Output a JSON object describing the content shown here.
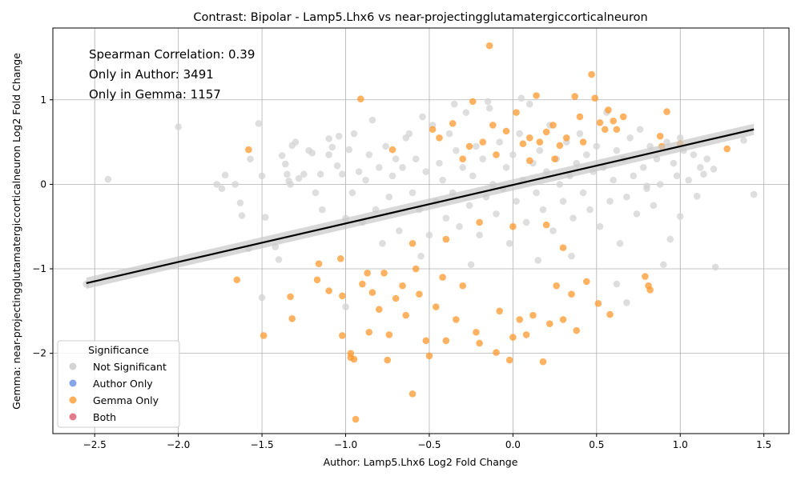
{
  "chart_data": {
    "type": "scatter",
    "title": "Contrast: Bipolar - Lamp5.Lhx6 vs near-projectingglutamatergiccorticalneuron",
    "xlabel": "Author: Lamp5.Lhx6 Log2 Fold Change",
    "ylabel": "Gemma: near-projectingglutamatergiccorticalneuron Log2 Fold Change",
    "xlim": [
      -2.75,
      1.65
    ],
    "ylim": [
      -2.95,
      1.85
    ],
    "x_ticks": [
      -2.5,
      -2.0,
      -1.5,
      -1.0,
      -0.5,
      0.0,
      0.5,
      1.0,
      1.5
    ],
    "x_tick_labels": [
      "−2.5",
      "−2.0",
      "−1.5",
      "−1.0",
      "−0.5",
      "0.0",
      "0.5",
      "1.0",
      "1.5"
    ],
    "y_ticks": [
      -2,
      -1,
      0,
      1
    ],
    "y_tick_labels": [
      "−2",
      "−1",
      "0",
      "1"
    ],
    "grid": true,
    "annotations": [
      "Spearman Correlation: 0.39",
      "Only in Author: 3491",
      "Only in Gemma: 1157"
    ],
    "regression_line": {
      "x": [
        -2.55,
        1.44
      ],
      "y": [
        -1.17,
        0.65
      ]
    },
    "legend": {
      "title": "Significance",
      "position": "lower-left",
      "entries": [
        {
          "label": "Not Significant",
          "color": "#d3d3d3"
        },
        {
          "label": "Author Only",
          "color": "#6a8ee6"
        },
        {
          "label": "Gemma Only",
          "color": "#ff9a2e"
        },
        {
          "label": "Both",
          "color": "#dd5a6e"
        }
      ]
    },
    "series": [
      {
        "name": "Not Significant",
        "color": "#d3d3d3",
        "points": [
          [
            -2.55,
            -1.18
          ],
          [
            -2.42,
            0.06
          ],
          [
            -2.0,
            0.68
          ],
          [
            -1.77,
            0.0
          ],
          [
            -1.74,
            -0.05
          ],
          [
            -1.72,
            0.11
          ],
          [
            -1.66,
            0.0
          ],
          [
            -1.63,
            -0.22
          ],
          [
            -1.62,
            -0.37
          ],
          [
            -1.58,
            -0.76
          ],
          [
            -1.57,
            0.3
          ],
          [
            -1.52,
            0.72
          ],
          [
            -1.5,
            0.1
          ],
          [
            -1.48,
            -0.39
          ],
          [
            -1.42,
            -0.74
          ],
          [
            -1.4,
            -0.89
          ],
          [
            -1.38,
            0.34
          ],
          [
            -1.36,
            0.24
          ],
          [
            -1.35,
            0.12
          ],
          [
            -1.34,
            0.04
          ],
          [
            -1.33,
            0.0
          ],
          [
            -1.32,
            0.46
          ],
          [
            -1.3,
            0.5
          ],
          [
            -1.28,
            0.07
          ],
          [
            -1.25,
            0.12
          ],
          [
            -1.22,
            0.4
          ],
          [
            -1.2,
            0.37
          ],
          [
            -1.18,
            -0.1
          ],
          [
            -1.15,
            0.12
          ],
          [
            -1.14,
            -0.3
          ],
          [
            -1.1,
            0.54
          ],
          [
            -1.08,
            0.44
          ],
          [
            -1.05,
            0.22
          ],
          [
            -1.04,
            0.57
          ],
          [
            -1.02,
            0.12
          ],
          [
            -1.0,
            -0.4
          ],
          [
            -0.98,
            0.41
          ],
          [
            -0.96,
            -0.1
          ],
          [
            -0.95,
            0.6
          ],
          [
            -0.92,
            0.15
          ],
          [
            -0.9,
            -0.45
          ],
          [
            -0.88,
            0.05
          ],
          [
            -0.86,
            0.35
          ],
          [
            -0.84,
            0.76
          ],
          [
            -0.82,
            -0.3
          ],
          [
            -0.8,
            0.2
          ],
          [
            -0.78,
            -0.7
          ],
          [
            -0.76,
            0.45
          ],
          [
            -0.74,
            -0.15
          ],
          [
            -0.72,
            0.1
          ],
          [
            -0.7,
            0.3
          ],
          [
            -0.68,
            -0.55
          ],
          [
            -0.66,
            0.2
          ],
          [
            -0.64,
            0.55
          ],
          [
            -0.62,
            0.6
          ],
          [
            -0.6,
            -0.1
          ],
          [
            -0.58,
            0.3
          ],
          [
            -0.56,
            -0.3
          ],
          [
            -0.54,
            0.8
          ],
          [
            -0.52,
            0.15
          ],
          [
            -0.5,
            -0.6
          ],
          [
            -0.48,
            0.7
          ],
          [
            -0.46,
            -0.2
          ],
          [
            -0.44,
            0.25
          ],
          [
            -0.42,
            0.05
          ],
          [
            -0.4,
            -0.4
          ],
          [
            -0.38,
            0.6
          ],
          [
            -0.36,
            -0.1
          ],
          [
            -0.34,
            0.4
          ],
          [
            -0.32,
            -0.5
          ],
          [
            -0.3,
            0.2
          ],
          [
            -0.28,
            0.85
          ],
          [
            -0.26,
            -0.25
          ],
          [
            -0.24,
            0.1
          ],
          [
            -0.22,
            0.45
          ],
          [
            -0.2,
            -0.6
          ],
          [
            -0.18,
            0.3
          ],
          [
            -0.16,
            -0.15
          ],
          [
            -0.14,
            0.9
          ],
          [
            -0.12,
            0.0
          ],
          [
            -0.1,
            -0.35
          ],
          [
            -0.08,
            0.5
          ],
          [
            -0.06,
            -0.05
          ],
          [
            -0.04,
            0.2
          ],
          [
            -0.02,
            -0.7
          ],
          [
            0.0,
            0.35
          ],
          [
            0.02,
            -0.2
          ],
          [
            0.04,
            0.6
          ],
          [
            0.06,
            0.05
          ],
          [
            0.08,
            -0.45
          ],
          [
            0.1,
            0.95
          ],
          [
            0.12,
            0.25
          ],
          [
            0.14,
            -0.1
          ],
          [
            0.16,
            0.4
          ],
          [
            0.18,
            -0.3
          ],
          [
            0.2,
            0.15
          ],
          [
            0.22,
            0.7
          ],
          [
            0.24,
            -0.55
          ],
          [
            0.26,
            0.3
          ],
          [
            0.28,
            0.0
          ],
          [
            0.3,
            -0.2
          ],
          [
            0.32,
            0.5
          ],
          [
            0.34,
            0.1
          ],
          [
            0.36,
            -0.4
          ],
          [
            0.38,
            0.25
          ],
          [
            0.4,
            0.6
          ],
          [
            0.42,
            -0.1
          ],
          [
            0.44,
            0.35
          ],
          [
            0.46,
            -0.3
          ],
          [
            0.48,
            0.15
          ],
          [
            0.5,
            0.45
          ],
          [
            0.52,
            -0.5
          ],
          [
            0.54,
            0.2
          ],
          [
            0.56,
            0.85
          ],
          [
            0.58,
            -0.2
          ],
          [
            0.6,
            0.05
          ],
          [
            0.62,
            0.4
          ],
          [
            0.64,
            -0.7
          ],
          [
            0.66,
            0.3
          ],
          [
            0.68,
            -0.15
          ],
          [
            0.7,
            0.55
          ],
          [
            0.72,
            0.1
          ],
          [
            0.74,
            -0.35
          ],
          [
            0.76,
            0.65
          ],
          [
            0.78,
            0.2
          ],
          [
            0.8,
            -0.05
          ],
          [
            0.82,
            0.45
          ],
          [
            0.84,
            -0.25
          ],
          [
            0.86,
            0.3
          ],
          [
            0.88,
            0.0
          ],
          [
            0.9,
            -0.95
          ],
          [
            0.92,
            0.5
          ],
          [
            0.94,
            -0.65
          ],
          [
            0.96,
            0.25
          ],
          [
            0.98,
            0.1
          ],
          [
            1.0,
            -0.38
          ],
          [
            1.02,
            0.4
          ],
          [
            1.05,
            0.05
          ],
          [
            1.08,
            0.35
          ],
          [
            1.1,
            -0.14
          ],
          [
            1.12,
            0.2
          ],
          [
            1.14,
            0.12
          ],
          [
            1.16,
            0.3
          ],
          [
            1.2,
            0.18
          ],
          [
            1.21,
            -0.98
          ],
          [
            1.38,
            0.52
          ],
          [
            1.44,
            -0.12
          ],
          [
            -0.35,
            0.95
          ],
          [
            -0.15,
            0.98
          ],
          [
            0.05,
            1.02
          ],
          [
            -0.25,
            -0.95
          ],
          [
            0.15,
            -0.9
          ],
          [
            0.35,
            -0.85
          ],
          [
            -0.55,
            -0.85
          ],
          [
            0.62,
            -1.18
          ],
          [
            0.68,
            -1.4
          ],
          [
            -1.0,
            -1.45
          ],
          [
            -1.5,
            -1.34
          ],
          [
            0.8,
            -0.02
          ],
          [
            1.0,
            0.55
          ],
          [
            -1.1,
            0.35
          ]
        ]
      },
      {
        "name": "Gemma Only",
        "color": "#ff9a2e",
        "points": [
          [
            -1.58,
            0.41
          ],
          [
            -1.65,
            -1.13
          ],
          [
            -1.49,
            -1.79
          ],
          [
            -1.32,
            -1.59
          ],
          [
            -1.33,
            -1.33
          ],
          [
            -1.16,
            -0.94
          ],
          [
            -1.17,
            -1.13
          ],
          [
            -1.1,
            -1.26
          ],
          [
            -1.03,
            -0.88
          ],
          [
            -1.02,
            -1.32
          ],
          [
            -1.02,
            -1.79
          ],
          [
            -0.97,
            -2.0
          ],
          [
            -0.97,
            -2.05
          ],
          [
            -0.95,
            -2.07
          ],
          [
            -0.94,
            -2.78
          ],
          [
            -0.91,
            1.01
          ],
          [
            -0.9,
            -1.18
          ],
          [
            -0.87,
            -1.05
          ],
          [
            -0.86,
            -1.75
          ],
          [
            -0.84,
            -1.28
          ],
          [
            -0.8,
            -1.48
          ],
          [
            -0.77,
            -1.05
          ],
          [
            -0.75,
            -2.08
          ],
          [
            -0.74,
            -1.78
          ],
          [
            -0.72,
            0.41
          ],
          [
            -0.7,
            -1.35
          ],
          [
            -0.66,
            -1.2
          ],
          [
            -0.64,
            -1.55
          ],
          [
            -0.6,
            -2.48
          ],
          [
            -0.58,
            -1.0
          ],
          [
            -0.56,
            -1.3
          ],
          [
            -0.52,
            -1.85
          ],
          [
            -0.5,
            -2.03
          ],
          [
            -0.48,
            0.65
          ],
          [
            -0.46,
            -1.45
          ],
          [
            -0.44,
            0.55
          ],
          [
            -0.42,
            -1.1
          ],
          [
            -0.4,
            -1.85
          ],
          [
            -0.36,
            0.72
          ],
          [
            -0.34,
            -1.6
          ],
          [
            -0.3,
            -1.2
          ],
          [
            -0.26,
            0.45
          ],
          [
            -0.24,
            0.98
          ],
          [
            -0.22,
            -1.75
          ],
          [
            -0.2,
            -1.88
          ],
          [
            -0.18,
            0.5
          ],
          [
            -0.14,
            1.64
          ],
          [
            -0.12,
            0.7
          ],
          [
            -0.1,
            -1.99
          ],
          [
            -0.08,
            -1.5
          ],
          [
            -0.04,
            0.63
          ],
          [
            -0.02,
            -2.08
          ],
          [
            0.0,
            -1.81
          ],
          [
            0.02,
            0.85
          ],
          [
            0.04,
            -1.6
          ],
          [
            0.06,
            0.48
          ],
          [
            0.08,
            -1.78
          ],
          [
            0.1,
            0.55
          ],
          [
            0.12,
            -1.55
          ],
          [
            0.14,
            1.05
          ],
          [
            0.16,
            0.5
          ],
          [
            0.18,
            -2.1
          ],
          [
            0.2,
            0.62
          ],
          [
            0.22,
            -1.65
          ],
          [
            0.24,
            0.7
          ],
          [
            0.26,
            -1.2
          ],
          [
            0.28,
            0.46
          ],
          [
            0.3,
            -1.6
          ],
          [
            0.32,
            0.55
          ],
          [
            0.35,
            -1.3
          ],
          [
            0.37,
            1.04
          ],
          [
            0.38,
            -1.73
          ],
          [
            0.4,
            0.8
          ],
          [
            0.42,
            0.5
          ],
          [
            0.44,
            -1.15
          ],
          [
            0.47,
            1.3
          ],
          [
            0.49,
            1.02
          ],
          [
            0.51,
            -1.41
          ],
          [
            0.52,
            0.73
          ],
          [
            0.55,
            0.65
          ],
          [
            0.57,
            0.88
          ],
          [
            0.58,
            -1.54
          ],
          [
            0.6,
            0.75
          ],
          [
            0.62,
            0.65
          ],
          [
            0.66,
            0.8
          ],
          [
            0.79,
            -1.09
          ],
          [
            0.81,
            -1.2
          ],
          [
            0.82,
            -1.25
          ],
          [
            0.88,
            0.57
          ],
          [
            0.89,
            0.45
          ],
          [
            0.92,
            0.86
          ],
          [
            1.0,
            0.48
          ],
          [
            1.28,
            0.42
          ],
          [
            -0.3,
            0.3
          ],
          [
            -0.1,
            0.35
          ],
          [
            0.1,
            0.28
          ],
          [
            -0.2,
            -0.45
          ],
          [
            0.0,
            -0.5
          ],
          [
            0.2,
            -0.48
          ],
          [
            -0.4,
            -0.65
          ],
          [
            0.25,
            0.3
          ],
          [
            -0.6,
            -0.7
          ],
          [
            0.3,
            -0.75
          ]
        ]
      }
    ]
  }
}
